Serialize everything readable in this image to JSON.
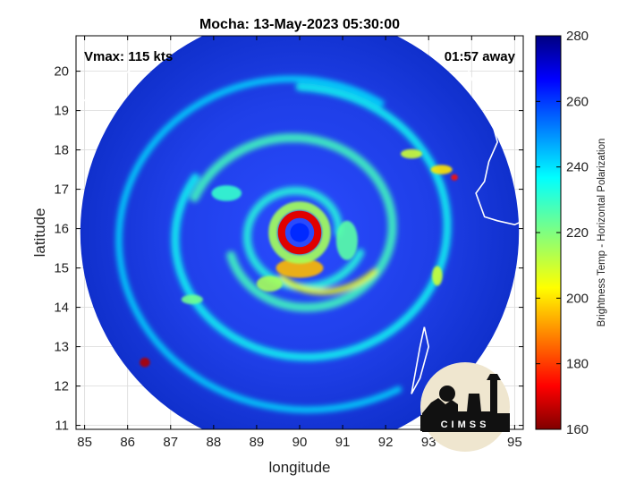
{
  "chart_data": {
    "type": "heatmap",
    "title": "Mocha: 13-May-2023 05:30:00",
    "xlabel": "longitude",
    "ylabel": "latitude",
    "xlim": [
      84.8,
      95.2
    ],
    "ylim": [
      10.9,
      20.9
    ],
    "x_ticks": [
      85,
      86,
      87,
      88,
      89,
      90,
      91,
      92,
      93,
      94,
      95
    ],
    "y_ticks": [
      11,
      12,
      13,
      14,
      15,
      16,
      17,
      18,
      19,
      20
    ],
    "grid": true,
    "colormap": "jet",
    "colorbar": {
      "label": "Brightness Temp - Horizontal Polarization",
      "range": [
        160,
        280
      ],
      "ticks": [
        160,
        180,
        200,
        220,
        240,
        260,
        280
      ]
    },
    "annotations": {
      "vmax": "Vmax: 115 kts",
      "time_offset": "01:57 away"
    },
    "storm_center": {
      "lon": 90.0,
      "lat": 15.9
    },
    "swath_radius_deg": 5.1,
    "logo_text": "CIMSS",
    "colors": {
      "background": "#ffffff",
      "axes": "#000000",
      "grid": "#d9d9d9",
      "coastline": "#ffffff"
    }
  }
}
